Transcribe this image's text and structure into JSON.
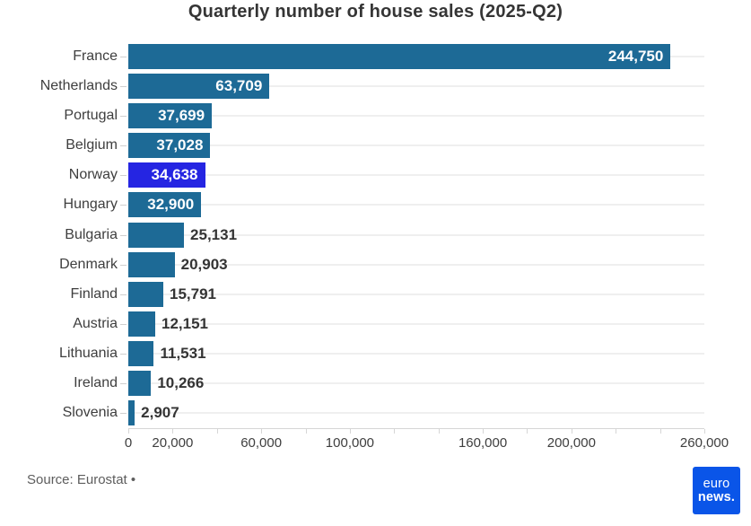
{
  "title": "Quarterly number of house sales (2025-Q2)",
  "footer": {
    "source": "Source: Eurostat •"
  },
  "logo": {
    "line1": "euro",
    "line2": "news."
  },
  "colors": {
    "bar": "#1d6a96",
    "highlight_bar": "#2525e2",
    "value_label_inside": "#ffffff",
    "value_label_outside": "#343434",
    "logo_background": "#0a55e8"
  },
  "chart_data": {
    "type": "bar",
    "orientation": "horizontal",
    "title": "Quarterly number of house sales (2025-Q2)",
    "xlabel": "",
    "ylabel": "",
    "xlim": [
      0,
      260000
    ],
    "grid": "horizontal category lines, light gray",
    "legend": "none",
    "highlighted_category": "Norway",
    "categories": [
      "France",
      "Netherlands",
      "Portugal",
      "Belgium",
      "Norway",
      "Hungary",
      "Bulgaria",
      "Denmark",
      "Finland",
      "Austria",
      "Lithuania",
      "Ireland",
      "Slovenia"
    ],
    "values": [
      244750,
      63709,
      37699,
      37028,
      34638,
      32900,
      25131,
      20903,
      15791,
      12151,
      11531,
      10266,
      2907
    ],
    "bars": [
      {
        "label": "France",
        "value": 244750,
        "display": "244,750",
        "inside": true,
        "highlight": false
      },
      {
        "label": "Netherlands",
        "value": 63709,
        "display": "63,709",
        "inside": true,
        "highlight": false
      },
      {
        "label": "Portugal",
        "value": 37699,
        "display": "37,699",
        "inside": true,
        "highlight": false
      },
      {
        "label": "Belgium",
        "value": 37028,
        "display": "37,028",
        "inside": true,
        "highlight": false
      },
      {
        "label": "Norway",
        "value": 34638,
        "display": "34,638",
        "inside": true,
        "highlight": true
      },
      {
        "label": "Hungary",
        "value": 32900,
        "display": "32,900",
        "inside": true,
        "highlight": false
      },
      {
        "label": "Bulgaria",
        "value": 25131,
        "display": "25,131",
        "inside": false,
        "highlight": false
      },
      {
        "label": "Denmark",
        "value": 20903,
        "display": "20,903",
        "inside": false,
        "highlight": false
      },
      {
        "label": "Finland",
        "value": 15791,
        "display": "15,791",
        "inside": false,
        "highlight": false
      },
      {
        "label": "Austria",
        "value": 12151,
        "display": "12,151",
        "inside": false,
        "highlight": false
      },
      {
        "label": "Lithuania",
        "value": 11531,
        "display": "11,531",
        "inside": false,
        "highlight": false
      },
      {
        "label": "Ireland",
        "value": 10266,
        "display": "10,266",
        "inside": false,
        "highlight": false
      },
      {
        "label": "Slovenia",
        "value": 2907,
        "display": "2,907",
        "inside": false,
        "highlight": false
      }
    ],
    "x_axis": {
      "tick_step": 20000,
      "tick_min": 0,
      "tick_max": 260000,
      "labels": [
        {
          "value": 0,
          "text": "0"
        },
        {
          "value": 20000,
          "text": "20,000"
        },
        {
          "value": 60000,
          "text": "60,000"
        },
        {
          "value": 100000,
          "text": "100,000"
        },
        {
          "value": 160000,
          "text": "160,000"
        },
        {
          "value": 200000,
          "text": "200,000"
        },
        {
          "value": 260000,
          "text": "260,000"
        }
      ]
    }
  }
}
